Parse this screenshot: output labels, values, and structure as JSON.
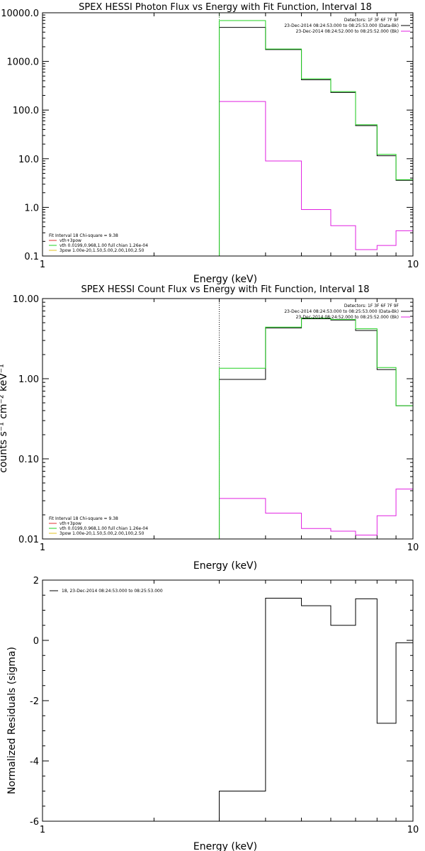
{
  "chart_data": [
    {
      "type": "line",
      "title": "SPEX HESSI Photon Flux vs Energy with Fit Function, Interval 18",
      "xlabel": "Energy (keV)",
      "ylabel": "",
      "xscale": "log",
      "yscale": "log",
      "xlim": [
        1,
        10
      ],
      "ylim": [
        0.1,
        10000
      ],
      "xticks": [
        "1",
        "10"
      ],
      "yticks": [
        "0.1",
        "1.0",
        "10.0",
        "100.0",
        "1000.0",
        "10000.0"
      ],
      "fit_start": 3,
      "edges": [
        3,
        4,
        5,
        6,
        7,
        8,
        9,
        10
      ],
      "series": [
        {
          "name": "23-Dec-2014 08:24:53.000 to 08:25:53.000 (Data-Bk)",
          "color": "#000000",
          "values": [
            5000,
            1750,
            420,
            230,
            48,
            11.5,
            3.6
          ]
        },
        {
          "name": "23-Dec-2014 08:24:52.000 to 08:25:52.000 (Bk)",
          "color": "#e020e0",
          "values": [
            150,
            9,
            0.9,
            0.42,
            0.135,
            0.165,
            0.33
          ]
        },
        {
          "name": "vth+3pow",
          "color": "#20d020",
          "values": [
            6900,
            1800,
            440,
            240,
            50,
            12.3,
            3.7
          ]
        }
      ],
      "legend_tr": [
        "Detectors: 1F 3F 6F 7F 9F",
        "23-Dec-2014 08:24:53.000 to 08:25:53.000 (Data-Bk)",
        "23-Dec-2014 08:24:52.000 to 08:25:52.000 (Bk)"
      ],
      "legend_bl": [
        {
          "text": "Fit Interval 18   Chi-square = 9.38",
          "color": ""
        },
        {
          "text": "vth+3pow",
          "color": "#e03030"
        },
        {
          "text": "vth 0.0199,0.968,1.00  full chian 1.26e-04",
          "color": "#20d020"
        },
        {
          "text": "3pow 1.00e-20,1.50,5.00,2.00,100,2.50",
          "color": "#e0c020"
        }
      ]
    },
    {
      "type": "line",
      "title": "SPEX HESSI Count Flux vs Energy with Fit Function, Interval 18",
      "xlabel": "Energy (keV)",
      "ylabel": "counts s⁻¹ cm⁻² keV⁻¹",
      "xscale": "log",
      "yscale": "log",
      "xlim": [
        1,
        10
      ],
      "ylim": [
        0.01,
        10
      ],
      "xticks": [
        "1",
        "10"
      ],
      "yticks": [
        "0.01",
        "0.10",
        "1.00",
        "10.00"
      ],
      "fit_start": 3,
      "edges": [
        3,
        4,
        5,
        6,
        7,
        8,
        9,
        10
      ],
      "series": [
        {
          "name": "23-Dec-2014 08:24:53.000 to 08:25:53.000 (Data-Bk)",
          "color": "#000000",
          "values": [
            0.98,
            4.3,
            5.6,
            5.4,
            4.0,
            1.3,
            0.46
          ]
        },
        {
          "name": "23-Dec-2014 08:24:52.000 to 08:25:52.000 (Bk)",
          "color": "#e020e0",
          "values": [
            0.032,
            0.021,
            0.0135,
            0.0125,
            0.0112,
            0.0195,
            0.042
          ]
        },
        {
          "name": "vth+3pow",
          "color": "#20d020",
          "values": [
            1.35,
            4.4,
            5.7,
            5.5,
            4.2,
            1.38,
            0.46
          ]
        }
      ],
      "legend_tr": [
        "Detectors: 1F 3F 6F 7F 9F",
        "23-Dec-2014 08:24:53.000 to 08:25:53.000 (Data-Bk)",
        "23-Dec-2014 08:24:52.000 to 08:25:52.000 (Bk)"
      ],
      "legend_bl": [
        {
          "text": "Fit Interval 18   Chi-square = 9.38",
          "color": ""
        },
        {
          "text": "vth+3pow",
          "color": "#e03030"
        },
        {
          "text": "vth 0.0199,0.968,1.00  full chian 1.26e-04",
          "color": "#20d020"
        },
        {
          "text": "3pow 1.00e-20,1.50,5.00,2.00,100,2.50",
          "color": "#e0c020"
        }
      ]
    },
    {
      "type": "line",
      "title": "",
      "xlabel": "Energy (keV)",
      "ylabel": "Normalized Residuals (sigma)",
      "xscale": "log",
      "yscale": "linear",
      "xlim": [
        1,
        10
      ],
      "ylim": [
        -6,
        2
      ],
      "xticks": [
        "1",
        "10"
      ],
      "yticks": [
        "-6",
        "-4",
        "-2",
        "0",
        "2"
      ],
      "edges": [
        3,
        4,
        5,
        6,
        7,
        8,
        9,
        10
      ],
      "series": [
        {
          "name": "18, 23-Dec-2014 08:24:53.000 to 08:25:53.000",
          "color": "#000000",
          "values": [
            -5.0,
            1.4,
            1.15,
            0.5,
            1.38,
            -2.75,
            -0.08
          ]
        }
      ]
    }
  ]
}
